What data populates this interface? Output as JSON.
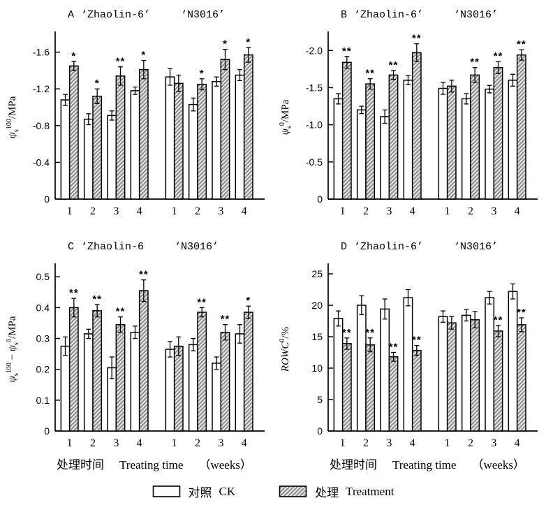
{
  "figure": {
    "xaxis_label": {
      "cn": "处理时间",
      "en": "Treating time",
      "unit": "（weeks）"
    },
    "legend": [
      {
        "swatch": "white",
        "label_cn": "对照",
        "label_en": "CK"
      },
      {
        "swatch": "hatched",
        "label_cn": "处理",
        "label_en": "Treatment"
      }
    ],
    "significance_symbols": [
      "*",
      "**"
    ],
    "colors": {
      "background": "#ffffff",
      "outline": "#000000",
      "ck_fill": "#ffffff",
      "hatch_line": "#8f8f8f",
      "hatch_bg": "#efefef"
    }
  },
  "chart_data": [
    {
      "type": "bar",
      "panel_label": "A",
      "group_titles": [
        "‘Zhaolin-6’",
        "‘N3016’"
      ],
      "ylabel_plain": "ψs100/MPa",
      "ylabel_segments": [
        {
          "t": "ψ",
          "style": "italic"
        },
        {
          "t": "s",
          "style": "sub"
        },
        {
          "t": "100",
          "style": "sup"
        },
        {
          "t": "/MPa",
          "style": "normal"
        }
      ],
      "yticks": {
        "values": [
          0,
          -0.4,
          -0.8,
          -1.2,
          -1.6
        ],
        "labels": [
          "0",
          "-0.4",
          "-0.8",
          "-1.2",
          "-1.6"
        ]
      },
      "ylim": [
        0,
        -1.78
      ],
      "grid": false,
      "categories": [
        "1",
        "2",
        "3",
        "4",
        "1",
        "2",
        "3",
        "4"
      ],
      "group_split": 4,
      "series": [
        {
          "name": "对照 CK",
          "values": [
            -1.08,
            -0.87,
            -0.91,
            -1.18,
            -1.33,
            -1.03,
            -1.28,
            -1.35
          ],
          "errors": [
            0.06,
            0.06,
            0.05,
            0.04,
            0.09,
            0.07,
            0.05,
            0.06
          ]
        },
        {
          "name": "处理 Treatment",
          "values": [
            -1.45,
            -1.12,
            -1.34,
            -1.41,
            -1.26,
            -1.25,
            -1.52,
            -1.57
          ],
          "errors": [
            0.05,
            0.08,
            0.1,
            0.1,
            0.09,
            0.06,
            0.11,
            0.08
          ],
          "significance": [
            "*",
            "*",
            "**",
            "*",
            "",
            "*",
            "*",
            "*"
          ]
        }
      ]
    },
    {
      "type": "bar",
      "panel_label": "B",
      "group_titles": [
        "‘Zhaolin-6’",
        "‘N3016’"
      ],
      "ylabel_plain": "ψs0/MPa",
      "ylabel_segments": [
        {
          "t": "ψ",
          "style": "italic"
        },
        {
          "t": "s",
          "style": "sub"
        },
        {
          "t": "0",
          "style": "sup"
        },
        {
          "t": "/MPa",
          "style": "normal"
        }
      ],
      "yticks": {
        "values": [
          0,
          -0.5,
          -1.0,
          -1.5,
          -2.0
        ],
        "labels": [
          "0",
          "-0.5",
          "-1.0",
          "-1.5",
          "-2.0"
        ]
      },
      "ylim": [
        0,
        -2.2
      ],
      "grid": false,
      "categories": [
        "1",
        "2",
        "3",
        "4",
        "1",
        "2",
        "3",
        "4"
      ],
      "group_split": 4,
      "series": [
        {
          "name": "对照 CK",
          "values": [
            -1.35,
            -1.2,
            -1.11,
            -1.6,
            -1.49,
            -1.35,
            -1.48,
            -1.6
          ],
          "errors": [
            0.07,
            0.05,
            0.09,
            0.06,
            0.08,
            0.07,
            0.05,
            0.08
          ]
        },
        {
          "name": "处理 Treatment",
          "values": [
            -1.84,
            -1.55,
            -1.67,
            -1.97,
            -1.52,
            -1.67,
            -1.77,
            -1.94
          ],
          "errors": [
            0.08,
            0.07,
            0.06,
            0.12,
            0.08,
            0.1,
            0.08,
            0.07
          ],
          "significance": [
            "**",
            "**",
            "**",
            "**",
            "",
            "**",
            "**",
            "**"
          ]
        }
      ]
    },
    {
      "type": "bar",
      "panel_label": "C",
      "group_titles": [
        "‘Zhaolin-6",
        "‘N3016’"
      ],
      "ylabel_plain": "ψs100 − ψs0/MPa",
      "ylabel_segments": [
        {
          "t": "ψ",
          "style": "italic"
        },
        {
          "t": "s",
          "style": "sub"
        },
        {
          "t": "100",
          "style": "sup"
        },
        {
          "t": " − ",
          "style": "normal"
        },
        {
          "t": "ψ",
          "style": "italic"
        },
        {
          "t": "s",
          "style": "sub"
        },
        {
          "t": "0",
          "style": "sup"
        },
        {
          "t": "/MPa",
          "style": "normal"
        }
      ],
      "yticks": {
        "values": [
          0,
          0.1,
          0.2,
          0.3,
          0.4,
          0.5
        ],
        "labels": [
          "0",
          "0.1",
          "0.2",
          "0.3",
          "0.4",
          "0.5"
        ]
      },
      "ylim": [
        0,
        0.53
      ],
      "grid": false,
      "categories": [
        "1",
        "2",
        "3",
        "4",
        "1",
        "2",
        "3",
        "4"
      ],
      "group_split": 4,
      "series": [
        {
          "name": "对照 CK",
          "values": [
            0.275,
            0.315,
            0.205,
            0.32,
            0.265,
            0.28,
            0.22,
            0.315
          ],
          "errors": [
            0.03,
            0.015,
            0.035,
            0.02,
            0.025,
            0.02,
            0.02,
            0.03
          ]
        },
        {
          "name": "处理 Treatment",
          "values": [
            0.4,
            0.39,
            0.345,
            0.455,
            0.275,
            0.385,
            0.32,
            0.385
          ],
          "errors": [
            0.03,
            0.02,
            0.025,
            0.035,
            0.03,
            0.015,
            0.025,
            0.02
          ],
          "significance": [
            "**",
            "**",
            "**",
            "**",
            "",
            "**",
            "**",
            "*"
          ]
        }
      ]
    },
    {
      "type": "bar",
      "panel_label": "D",
      "group_titles": [
        "‘Zhaolin-6’",
        "‘N3016’"
      ],
      "ylabel_plain": "ROWC0/%",
      "ylabel_segments": [
        {
          "t": "ROWC",
          "style": "italic"
        },
        {
          "t": "0",
          "style": "sup"
        },
        {
          "t": "/%",
          "style": "normal"
        }
      ],
      "yticks": {
        "values": [
          0,
          5,
          10,
          15,
          20,
          25
        ],
        "labels": [
          "0",
          "5",
          "10",
          "15",
          "20",
          "25"
        ]
      },
      "ylim": [
        0,
        26
      ],
      "grid": false,
      "categories": [
        "1",
        "2",
        "3",
        "4",
        "1",
        "2",
        "3",
        "4"
      ],
      "group_split": 4,
      "series": [
        {
          "name": "对照 CK",
          "values": [
            17.9,
            20.0,
            19.4,
            21.2,
            18.2,
            18.4,
            21.2,
            22.2
          ],
          "errors": [
            1.2,
            1.5,
            1.6,
            1.3,
            0.9,
            0.9,
            1.0,
            1.2
          ]
        },
        {
          "name": "处理 Treatment",
          "values": [
            13.9,
            13.7,
            11.8,
            12.8,
            17.2,
            17.7,
            15.9,
            16.9
          ],
          "errors": [
            0.9,
            1.1,
            0.7,
            0.8,
            1.0,
            1.3,
            0.9,
            1.1
          ],
          "significance": [
            "**",
            "**",
            "**",
            "**",
            "",
            "",
            "**",
            "**"
          ]
        }
      ]
    }
  ]
}
